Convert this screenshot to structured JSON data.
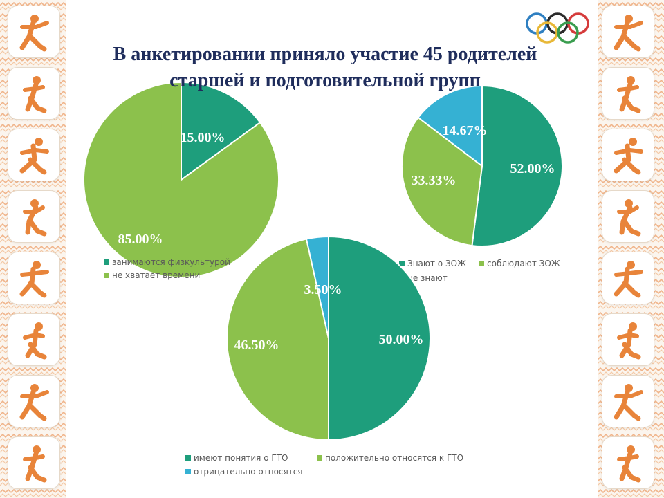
{
  "title_line1": "В анкетировании приняло участие 45 родителей",
  "title_line2": "старшей и подготовительной групп",
  "icons_left": [
    "handball-icon",
    "volleyball-icon",
    "gymnastics-icon",
    "skiing-icon",
    "badminton-icon",
    "wrestling-icon",
    "soccer-icon",
    "cross-country-ski-icon"
  ],
  "icons_right": [
    "hockey-icon",
    "archery-icon",
    "basketball-icon",
    "rhythmic-gymnastics-icon",
    "swimming-icon",
    "tennis-icon",
    "shooting-icon",
    "tennis-serve-icon"
  ],
  "olympic_ring_colors": [
    "#2f7fc1",
    "#2b2b2b",
    "#d53b3b",
    "#e8b838",
    "#3a9d4f"
  ],
  "chart_data": [
    {
      "type": "pie",
      "labels": [
        "занимаются физкультурой",
        "не хватает времени"
      ],
      "values": [
        15.0,
        85.0
      ],
      "value_labels": [
        "15.00%",
        "85.00%"
      ],
      "colors": [
        "#1e9e7c",
        "#8cc14c"
      ],
      "legend_position": "bottom"
    },
    {
      "type": "pie",
      "labels": [
        "знают о ЗОЖ",
        "соблюдают ЗОЖ",
        "не знают"
      ],
      "legend_labels": [
        "Знают о ЗОЖ",
        "соблюдают ЗОЖ",
        "не знают"
      ],
      "values": [
        52.0,
        33.33,
        14.67
      ],
      "value_labels": [
        "52.00%",
        "33.33%",
        "14.67%"
      ],
      "colors": [
        "#1e9e7c",
        "#8cc14c",
        "#35b1d3"
      ],
      "legend_position": "bottom"
    },
    {
      "type": "pie",
      "labels": [
        "имеют понятия о ГТО",
        "положительно относятся к ГТО",
        "отрицательно относятся"
      ],
      "values": [
        50.0,
        46.5,
        3.5
      ],
      "value_labels": [
        "50.00%",
        "46.50%",
        "3.50%"
      ],
      "colors": [
        "#1e9e7c",
        "#8cc14c",
        "#35b1d3"
      ],
      "legend_position": "bottom"
    }
  ]
}
